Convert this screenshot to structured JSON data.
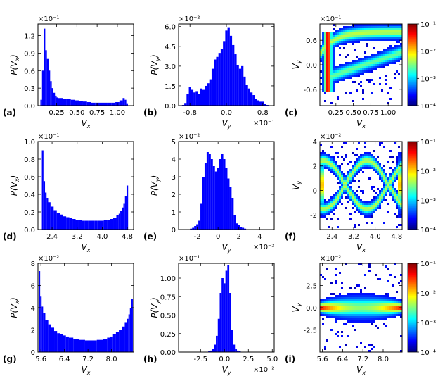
{
  "chart_data": [
    {
      "id": "a",
      "type": "bar",
      "panel_label": "(a)",
      "xlabel": "V_x",
      "ylabel": "P(V_x)",
      "exponent": "×10⁻¹",
      "xlim": [
        0.02,
        1.2
      ],
      "ylim": [
        0,
        1.4
      ],
      "xticks": [
        0.25,
        0.5,
        0.75,
        1.0
      ],
      "xtick_labels": [
        "0.25",
        "0.50",
        "0.75",
        "1.00"
      ],
      "yticks": [
        0.0,
        0.3,
        0.6,
        0.9,
        1.2
      ],
      "ytick_labels": [
        "0.0",
        "0.3",
        "0.6",
        "0.9",
        "1.2"
      ],
      "x": [
        0.06,
        0.08,
        0.1,
        0.12,
        0.14,
        0.16,
        0.18,
        0.2,
        0.22,
        0.24,
        0.26,
        0.28,
        0.3,
        0.35,
        0.4,
        0.45,
        0.5,
        0.55,
        0.6,
        0.65,
        0.7,
        0.75,
        0.8,
        0.85,
        0.9,
        0.95,
        1.0,
        1.05,
        1.08,
        1.1,
        1.12,
        1.14
      ],
      "values": [
        0.1,
        0.6,
        1.32,
        0.95,
        0.8,
        0.6,
        0.42,
        0.3,
        0.22,
        0.17,
        0.14,
        0.13,
        0.13,
        0.12,
        0.11,
        0.1,
        0.09,
        0.08,
        0.07,
        0.06,
        0.05,
        0.05,
        0.05,
        0.05,
        0.05,
        0.05,
        0.06,
        0.09,
        0.13,
        0.1,
        0.04,
        0.0
      ]
    },
    {
      "id": "b",
      "type": "bar",
      "panel_label": "(b)",
      "xlabel": "V_y",
      "ylabel": "P(V_y)",
      "exponent": "×10⁻²",
      "x_exponent": "×10⁻¹",
      "xlim": [
        -1.05,
        1.05
      ],
      "ylim": [
        0,
        6.2
      ],
      "xticks": [
        -0.8,
        0.0,
        0.8
      ],
      "xtick_labels": [
        "-0.8",
        "0.0",
        "0.8"
      ],
      "yticks": [
        0.0,
        1.5,
        3.0,
        4.5,
        6.0
      ],
      "ytick_labels": [
        "0.0",
        "1.5",
        "3.0",
        "4.5",
        "6.0"
      ],
      "x": [
        -0.95,
        -0.9,
        -0.85,
        -0.8,
        -0.75,
        -0.7,
        -0.65,
        -0.6,
        -0.55,
        -0.5,
        -0.45,
        -0.4,
        -0.35,
        -0.3,
        -0.25,
        -0.2,
        -0.15,
        -0.1,
        -0.05,
        0.0,
        0.05,
        0.1,
        0.15,
        0.2,
        0.25,
        0.3,
        0.35,
        0.4,
        0.45,
        0.5,
        0.55,
        0.6,
        0.65,
        0.7,
        0.75,
        0.8,
        0.85,
        0.9
      ],
      "values": [
        0.05,
        0.2,
        0.9,
        1.4,
        1.2,
        1.0,
        1.1,
        0.9,
        1.3,
        1.2,
        1.5,
        1.7,
        2.0,
        2.8,
        3.5,
        3.7,
        4.0,
        4.3,
        4.9,
        5.7,
        5.9,
        5.3,
        4.6,
        3.9,
        3.1,
        2.8,
        3.0,
        2.2,
        1.6,
        1.3,
        1.0,
        0.8,
        0.5,
        0.4,
        0.3,
        0.3,
        0.15,
        0.05
      ]
    },
    {
      "id": "c",
      "type": "heatmap",
      "panel_label": "(c)",
      "xlabel": "V_x",
      "ylabel": "V_y",
      "exponent": "×10⁻¹",
      "xlim": [
        0.02,
        1.2
      ],
      "ylim": [
        -1.0,
        1.0
      ],
      "xticks": [
        0.25,
        0.5,
        0.75,
        1.0
      ],
      "xtick_labels": [
        "0.25",
        "0.50",
        "0.75",
        "1.00"
      ],
      "yticks": [
        -0.6,
        0.0,
        0.6
      ],
      "ytick_labels": [
        "-0.6",
        "0.0",
        "0.6"
      ],
      "colorbar_ticks": [
        "10⁻¹",
        "10⁻²",
        "10⁻³",
        "10⁻⁴"
      ]
    },
    {
      "id": "d",
      "type": "bar",
      "panel_label": "(d)",
      "xlabel": "V_x",
      "ylabel": "P(V_x)",
      "exponent": "×10⁻¹",
      "xlim": [
        1.95,
        5.0
      ],
      "ylim": [
        0,
        1.0
      ],
      "xticks": [
        2.4,
        3.2,
        4.0,
        4.8
      ],
      "xtick_labels": [
        "2.4",
        "3.2",
        "4.0",
        "4.8"
      ],
      "yticks": [
        0.0,
        0.2,
        0.4,
        0.6,
        0.8,
        1.0
      ],
      "ytick_labels": [
        "0.0",
        "0.2",
        "0.4",
        "0.6",
        "0.8",
        "1.0"
      ],
      "x": [
        2.1,
        2.15,
        2.2,
        2.25,
        2.3,
        2.4,
        2.5,
        2.6,
        2.7,
        2.8,
        2.9,
        3.0,
        3.1,
        3.2,
        3.3,
        3.4,
        3.5,
        3.6,
        3.7,
        3.8,
        3.9,
        4.0,
        4.1,
        4.2,
        4.3,
        4.4,
        4.5,
        4.55,
        4.6,
        4.65,
        4.7,
        4.75,
        4.8
      ],
      "values": [
        0.9,
        0.55,
        0.42,
        0.36,
        0.31,
        0.26,
        0.22,
        0.19,
        0.17,
        0.15,
        0.14,
        0.13,
        0.12,
        0.11,
        0.11,
        0.1,
        0.1,
        0.1,
        0.1,
        0.1,
        0.1,
        0.1,
        0.11,
        0.11,
        0.12,
        0.13,
        0.16,
        0.18,
        0.21,
        0.25,
        0.3,
        0.38,
        0.5
      ]
    },
    {
      "id": "e",
      "type": "bar",
      "panel_label": "(e)",
      "xlabel": "V_y",
      "ylabel": "P(V_y)",
      "exponent": "×10⁻²",
      "x_exponent": "×10⁻²",
      "xlim": [
        -3.8,
        5.4
      ],
      "ylim": [
        0,
        5.0
      ],
      "xticks": [
        -2,
        0,
        2,
        4
      ],
      "xtick_labels": [
        "-2",
        "0",
        "2",
        "4"
      ],
      "yticks": [
        0,
        1,
        2,
        3,
        4,
        5
      ],
      "ytick_labels": [
        "0",
        "1",
        "2",
        "3",
        "4",
        "5"
      ],
      "x": [
        -2.6,
        -2.4,
        -2.2,
        -2.0,
        -1.8,
        -1.6,
        -1.4,
        -1.2,
        -1.0,
        -0.8,
        -0.6,
        -0.4,
        -0.2,
        0.0,
        0.2,
        0.4,
        0.6,
        0.8,
        1.0,
        1.2,
        1.4,
        1.6,
        1.8,
        2.0,
        2.2,
        2.4,
        2.6,
        2.8
      ],
      "values": [
        0.05,
        0.1,
        0.2,
        0.3,
        0.5,
        1.5,
        3.0,
        3.8,
        4.4,
        4.3,
        4.0,
        3.6,
        3.3,
        3.5,
        4.0,
        4.3,
        4.0,
        3.5,
        2.9,
        2.4,
        1.8,
        0.8,
        0.35,
        0.25,
        0.15,
        0.1,
        0.05,
        0.02
      ]
    },
    {
      "id": "f",
      "type": "heatmap",
      "panel_label": "(f)",
      "xlabel": "V_x",
      "ylabel": "V_y",
      "exponent": "×10⁻²",
      "xlim": [
        1.95,
        5.0
      ],
      "ylim": [
        -3.2,
        4.0
      ],
      "xticks": [
        2.4,
        3.2,
        4.0,
        4.8
      ],
      "xtick_labels": [
        "2.4",
        "3.2",
        "4.0",
        "4.8"
      ],
      "yticks": [
        -2,
        0,
        2,
        4
      ],
      "ytick_labels": [
        "-2",
        "0",
        "2",
        "4"
      ],
      "colorbar_ticks": [
        "10⁻¹",
        "10⁻²",
        "10⁻³",
        "10⁻⁴"
      ]
    },
    {
      "id": "g",
      "type": "bar",
      "panel_label": "(g)",
      "xlabel": "V_x",
      "ylabel": "P(V_x)",
      "exponent": "×10⁻²",
      "xlim": [
        5.5,
        8.75
      ],
      "ylim": [
        0,
        8.0
      ],
      "xticks": [
        5.6,
        6.4,
        7.2,
        8.0
      ],
      "xtick_labels": [
        "5.6",
        "6.4",
        "7.2",
        "8.0"
      ],
      "yticks": [
        0,
        2,
        4,
        6,
        8
      ],
      "ytick_labels": [
        "0",
        "2",
        "4",
        "6",
        "8"
      ],
      "x": [
        5.55,
        5.6,
        5.65,
        5.7,
        5.8,
        5.9,
        6.0,
        6.1,
        6.2,
        6.3,
        6.4,
        6.5,
        6.6,
        6.8,
        7.0,
        7.2,
        7.4,
        7.6,
        7.8,
        7.9,
        8.0,
        8.1,
        8.2,
        8.3,
        8.4,
        8.5,
        8.55,
        8.6,
        8.65,
        8.7
      ],
      "values": [
        7.3,
        5.0,
        4.1,
        3.5,
        2.9,
        2.5,
        2.2,
        1.9,
        1.7,
        1.6,
        1.5,
        1.4,
        1.3,
        1.2,
        1.1,
        1.05,
        1.05,
        1.1,
        1.2,
        1.3,
        1.4,
        1.6,
        1.8,
        2.0,
        2.3,
        2.7,
        3.0,
        3.4,
        4.0,
        4.8
      ]
    },
    {
      "id": "h",
      "type": "bar",
      "panel_label": "(h)",
      "xlabel": "V_y",
      "ylabel": "P(V_y)",
      "exponent": "×10⁻¹",
      "x_exponent": "×10⁻²",
      "xlim": [
        -4.8,
        5.2
      ],
      "ylim": [
        0,
        1.2
      ],
      "xticks": [
        -2.5,
        0.0,
        2.5,
        5.0
      ],
      "xtick_labels": [
        "-2.5",
        "0.0",
        "2.5",
        "5.0"
      ],
      "yticks": [
        0.0,
        0.25,
        0.5,
        0.75,
        1.0
      ],
      "ytick_labels": [
        "0.00",
        "0.25",
        "0.50",
        "0.75",
        "1.00"
      ],
      "x": [
        -1.6,
        -1.4,
        -1.2,
        -1.0,
        -0.8,
        -0.6,
        -0.4,
        -0.2,
        0.0,
        0.2,
        0.4,
        0.6,
        0.8,
        1.0,
        1.2,
        1.4,
        1.6
      ],
      "values": [
        0.01,
        0.02,
        0.04,
        0.1,
        0.22,
        0.45,
        0.8,
        1.0,
        0.93,
        1.1,
        1.18,
        0.8,
        0.3,
        0.1,
        0.04,
        0.02,
        0.01
      ]
    },
    {
      "id": "i",
      "type": "heatmap",
      "panel_label": "(i)",
      "xlabel": "V_x",
      "ylabel": "V_y",
      "exponent": "×10⁻²",
      "xlim": [
        5.5,
        8.75
      ],
      "ylim": [
        -5.0,
        5.0
      ],
      "xticks": [
        5.6,
        6.4,
        7.2,
        8.0
      ],
      "xtick_labels": [
        "5.6",
        "6.4",
        "7.2",
        "8.0"
      ],
      "yticks": [
        -2.5,
        0.0,
        2.5
      ],
      "ytick_labels": [
        "-2.5",
        "0.0",
        "2.5"
      ],
      "colorbar_ticks": [
        "10⁻¹",
        "10⁻²",
        "10⁻³",
        "10⁻⁴"
      ]
    }
  ]
}
